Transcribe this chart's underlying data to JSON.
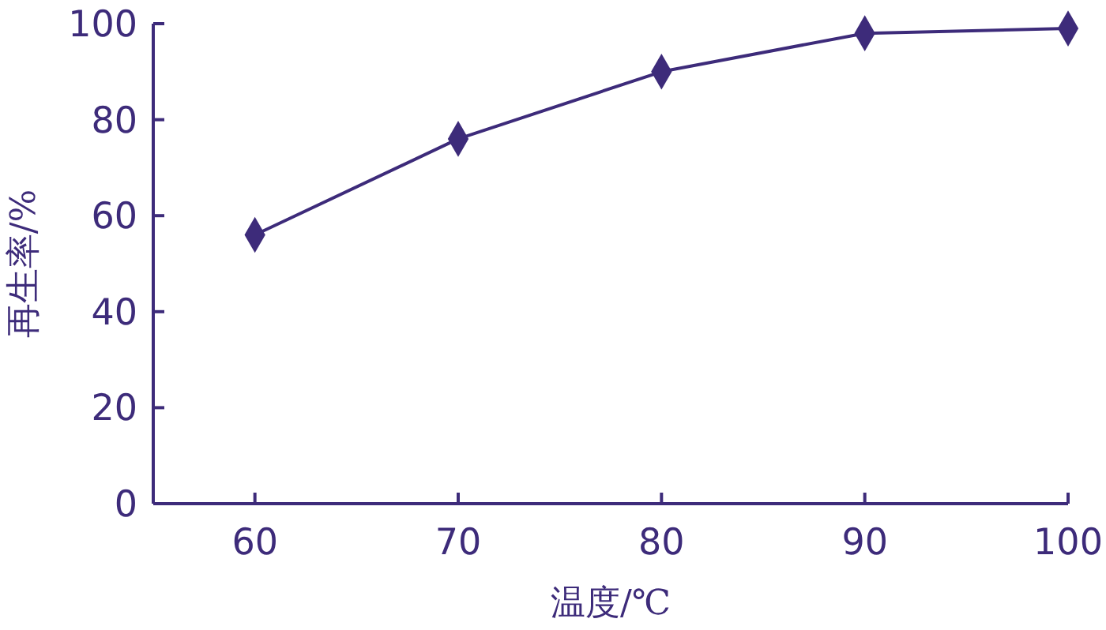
{
  "chart_data": {
    "type": "line",
    "xlabel": "温度/℃",
    "ylabel": "再生率/%",
    "x": [
      60,
      70,
      80,
      90,
      100
    ],
    "series": [
      {
        "color": "#3d2b7a",
        "values": [
          56,
          76,
          90,
          98,
          99
        ]
      }
    ],
    "xlim": [
      55,
      100
    ],
    "xticks": [
      60,
      70,
      80,
      90,
      100
    ],
    "ylim": [
      0,
      100
    ],
    "yticks": [
      0,
      20,
      40,
      60,
      80,
      100
    ],
    "grid": false,
    "marker": "diamond",
    "line_style": "solid"
  }
}
